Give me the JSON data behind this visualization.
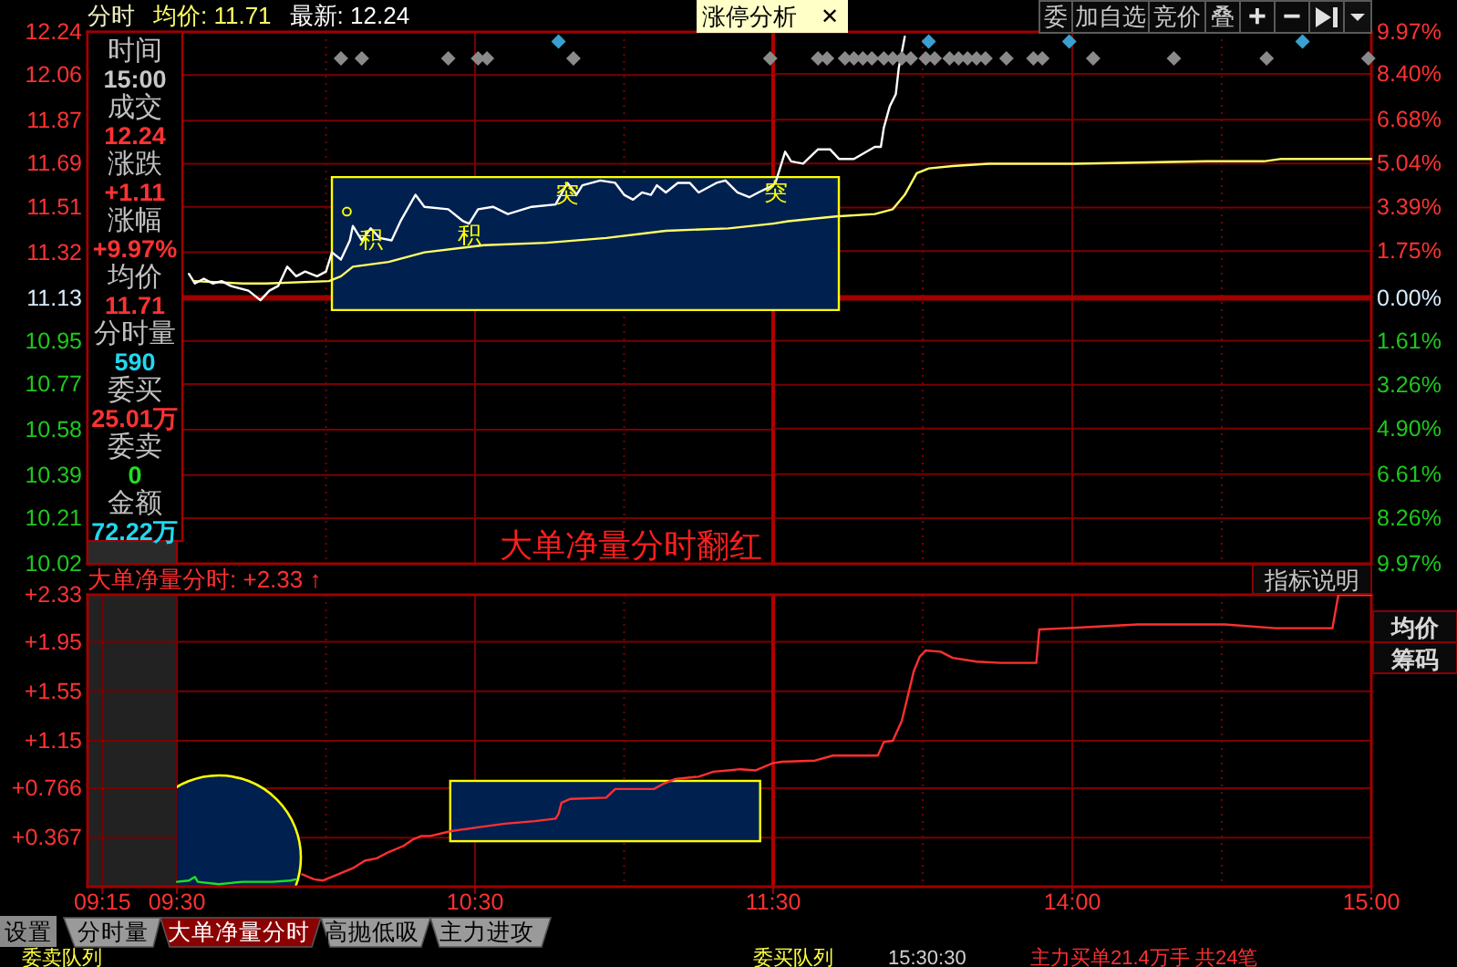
{
  "chart_data": [
    {
      "type": "line",
      "title": "分时",
      "legend": "top left",
      "grid": true,
      "tick_labels": "y",
      "series": [
        {
          "name": "均价: 11.71",
          "color": "#ffff66",
          "x": [
            9.56,
            9.72,
            9.8,
            10.01,
            10.05,
            10.09,
            10.21,
            10.33,
            10.53,
            10.74,
            10.94,
            11.14,
            11.35,
            11.5
          ],
          "values": [
            11.2,
            11.19,
            11.19,
            11.2,
            11.22,
            11.26,
            11.28,
            11.32,
            11.35,
            11.36,
            11.38,
            11.41,
            11.42,
            11.44
          ]
        },
        {
          "name": "最新: 12.24",
          "color": "#ffffff",
          "x": [
            9.54,
            9.56,
            9.59,
            9.62,
            9.65,
            9.68,
            9.74,
            9.78,
            9.81,
            9.84,
            9.87,
            9.9,
            9.93,
            9.97,
            10.0,
            10.02,
            10.05,
            10.08,
            10.09,
            10.12,
            10.15,
            10.18,
            10.22,
            10.25,
            10.3,
            10.33,
            10.41,
            10.46,
            10.48,
            10.51,
            10.56,
            10.61,
            10.69,
            10.77,
            10.81,
            10.84,
            10.86,
            10.92,
            10.97,
            11.0,
            11.03,
            11.06,
            11.09,
            11.11,
            11.14,
            11.18,
            11.22,
            11.25,
            11.31,
            11.34,
            11.38,
            11.42,
            11.45,
            11.5
          ],
          "values": [
            11.23,
            11.19,
            11.21,
            11.19,
            11.2,
            11.18,
            11.16,
            11.12,
            11.16,
            11.18,
            11.26,
            11.22,
            11.24,
            11.22,
            11.24,
            11.32,
            11.29,
            11.37,
            11.43,
            11.37,
            11.42,
            11.38,
            11.37,
            11.45,
            11.56,
            11.51,
            11.5,
            11.45,
            11.44,
            11.5,
            11.51,
            11.48,
            11.51,
            11.52,
            11.61,
            11.56,
            11.6,
            11.62,
            11.61,
            11.56,
            11.54,
            11.57,
            11.56,
            11.6,
            11.57,
            11.61,
            11.61,
            11.57,
            11.61,
            11.62,
            11.57,
            11.55,
            11.57,
            11.6
          ]
        },
        {
          "type": "scatter",
          "marker": "diamond",
          "color": "#8a8a8a",
          "x": [
            10.05,
            10.12,
            10.41,
            10.51,
            10.54,
            10.83,
            11.49
          ],
          "values": [
            12.13,
            12.13,
            12.13,
            12.13,
            12.13,
            12.13,
            12.13
          ]
        },
        {
          "type": "scatter",
          "marker": "diamond",
          "color": "#3aa0d0",
          "x": [
            10.78
          ],
          "values": [
            12.2
          ]
        },
        {
          "type": "scatter",
          "marker": "circle",
          "color": "#ffff00",
          "x": [
            10.07
          ],
          "values": [
            11.49
          ]
        }
      ],
      "xlim": [
        9.2,
        11.5
      ],
      "xticks": [
        9.25,
        9.5,
        {
          "value": 10,
          "label": null
        },
        10.5,
        {
          "value": 11,
          "label": null
        },
        11.5
      ],
      "ylim": [
        10.02,
        12.24
      ],
      "yticks": [
        10.02,
        10.21,
        10.39,
        10.58,
        10.77,
        10.95,
        11.13,
        11.32,
        11.51,
        11.69,
        11.87,
        12.06,
        12.24
      ],
      "ref_lines": [
        {
          "axis": "y",
          "value": 11.13,
          "color": "#a00000"
        },
        {
          "axis": "x",
          "value": 11.5,
          "color": "#b00000"
        }
      ],
      "annotations": [
        {
          "text": "积",
          "x": 10.15,
          "y": 11.42
        },
        {
          "text": "积",
          "x": 10.48,
          "y": 11.44
        },
        {
          "text": "突",
          "x": 10.81,
          "y": 11.61
        },
        "大单净量分时翻红"
      ]
    },
    {
      "type": "line",
      "grid": true,
      "tick_labels": "y",
      "series": [
        {
          "color": "#ffff66",
          "x": [
            13.0,
            13.05,
            13.21,
            13.34,
            13.4,
            13.44,
            13.48,
            13.52,
            13.6,
            13.72,
            14.01,
            14.45,
            14.64,
            14.7,
            15.0
          ],
          "values": [
            11.44,
            11.45,
            11.47,
            11.48,
            11.5,
            11.56,
            11.65,
            11.67,
            11.68,
            11.69,
            11.69,
            11.7,
            11.7,
            11.71,
            11.71
          ]
        },
        {
          "color": "#ffffff",
          "x": [
            13.0,
            13.01,
            13.04,
            13.06,
            13.1,
            13.15,
            13.19,
            13.22,
            13.27,
            13.34,
            13.36,
            13.37,
            13.39,
            13.41,
            13.42,
            13.44
          ],
          "values": [
            11.6,
            11.62,
            11.74,
            11.7,
            11.69,
            11.75,
            11.75,
            11.71,
            11.71,
            11.76,
            11.76,
            11.84,
            11.93,
            11.98,
            12.09,
            12.22
          ]
        },
        {
          "type": "scatter",
          "marker": "diamond",
          "color": "#8a8a8a",
          "x": [
            13.15,
            13.18,
            13.24,
            13.27,
            13.3,
            13.33,
            13.37,
            13.4,
            13.43,
            13.46,
            13.51,
            13.54,
            13.59,
            13.62,
            13.65,
            13.68,
            13.71,
            13.78,
            13.87,
            13.9,
            14.07,
            14.34,
            14.65,
            14.99
          ],
          "values": [
            12.13,
            12.13,
            12.13,
            12.13,
            12.13,
            12.13,
            12.13,
            12.13,
            12.13,
            12.13,
            12.13,
            12.13,
            12.13,
            12.13,
            12.13,
            12.13,
            12.13,
            12.13,
            12.13,
            12.13,
            12.13,
            12.13,
            12.13,
            12.13
          ]
        },
        {
          "type": "scatter",
          "marker": "diamond",
          "color": "#3aa0d0",
          "x": [
            13.52,
            13.99,
            14.77
          ],
          "values": [
            12.2,
            12.2,
            12.2
          ]
        }
      ],
      "xlim": [
        13,
        15
      ],
      "xticks": [
        {
          "value": 13.5,
          "label": null
        },
        14,
        {
          "value": 14.5,
          "label": null
        },
        15
      ],
      "ylim": [
        10.02,
        12.24
      ],
      "y2lim": [
        -9.97,
        9.97
      ],
      "y2ticks": [
        {
          "value": -9.97,
          "label": "9.97%"
        },
        {
          "value": -8.26,
          "label": "8.26%"
        },
        {
          "value": -6.61,
          "label": "6.61%"
        },
        {
          "value": -4.9,
          "label": "4.90%"
        },
        {
          "value": -3.26,
          "label": "3.26%"
        },
        {
          "value": -1.61,
          "label": "1.61%"
        },
        {
          "value": 0,
          "label": "0.00%"
        },
        {
          "value": 1.75,
          "label": "1.75%"
        },
        {
          "value": 3.39,
          "label": "3.39%"
        },
        {
          "value": 5.04,
          "label": "5.04%"
        },
        {
          "value": 6.68,
          "label": "6.68%"
        },
        {
          "value": 8.4,
          "label": "8.40%"
        },
        {
          "value": 9.97,
          "label": "9.97%"
        }
      ],
      "ref_lines": [
        {
          "axis": "y",
          "value": 11.13,
          "color": "#a00000"
        }
      ],
      "annotations": [
        {
          "text": "突",
          "x": 13.01,
          "y": 11.62
        }
      ]
    },
    {
      "type": "other",
      "annotations": [
        "时间",
        "15:00",
        "成交",
        "12.24",
        "涨跌",
        "+1.11",
        "涨幅",
        "+9.97%",
        "均价",
        "11.71",
        "分时量",
        "590",
        "委买",
        "25.01万",
        "委卖",
        "0",
        "金额",
        "72.22万"
      ],
      "colors": [
        "#c0c0c0",
        "#c8c8c8",
        "#c0c0c0",
        "#ff3232",
        "#c0c0c0",
        "#ff3232",
        "#c0c0c0",
        "#ff3232",
        "#c0c0c0",
        "#ff3232",
        "#c0c0c0",
        "#20d8f0",
        "#c0c0c0",
        "#ff3232",
        "#c0c0c0",
        "#20e020",
        "#c0c0c0",
        "#20d8f0"
      ]
    },
    {
      "type": "line",
      "title": "大单净量分时: +2.33 ↑",
      "grid": true,
      "series": [
        {
          "color": "#20e020",
          "x": [
            9.5,
            9.54,
            9.56,
            9.57,
            9.64,
            9.72,
            9.82,
            9.88,
            9.9
          ],
          "values": [
            0.01,
            0.02,
            0.05,
            0.01,
            -0.01,
            0.01,
            0.01,
            0.02,
            0.03
          ]
        },
        {
          "color": "#ff3030",
          "x": [
            9.92,
            9.96,
            9.99,
            10.02,
            10.05,
            10.09,
            10.13,
            10.17,
            10.21,
            10.26,
            10.29,
            10.32,
            10.35,
            10.42,
            10.51,
            10.6,
            10.7,
            10.77,
            10.78,
            10.79,
            10.82,
            10.94,
            10.97,
            11.1,
            11.13,
            11.17,
            11.25,
            11.3,
            11.35,
            11.39,
            11.44,
            11.5
          ],
          "values": [
            0.07,
            0.03,
            0.02,
            0.05,
            0.08,
            0.12,
            0.18,
            0.2,
            0.25,
            0.3,
            0.35,
            0.38,
            0.38,
            0.42,
            0.45,
            0.48,
            0.5,
            0.52,
            0.56,
            0.65,
            0.68,
            0.69,
            0.76,
            0.76,
            0.8,
            0.84,
            0.86,
            0.9,
            0.91,
            0.92,
            0.91,
            0.97
          ]
        }
      ],
      "xlim": [
        9.2,
        11.5
      ],
      "xticks": [
        {
          "value": 9.25,
          "label": "09:15"
        },
        {
          "value": 9.5,
          "label": "09:30"
        },
        {
          "value": 10,
          "label": null
        },
        {
          "value": 10.5,
          "label": "10:30"
        },
        {
          "value": 11,
          "label": null
        },
        {
          "value": 11.5,
          "label": "11:30"
        }
      ],
      "ylim": [
        -0.03,
        2.33
      ],
      "yticks": [
        {
          "value": 0.367,
          "label": "+0.367"
        },
        {
          "value": 0.766,
          "label": "+0.766"
        },
        {
          "value": 1.15,
          "label": "+1.15"
        },
        {
          "value": 1.55,
          "label": "+1.55"
        },
        {
          "value": 1.95,
          "label": "+1.95"
        },
        {
          "value": 2.33,
          "label": "+2.33"
        }
      ],
      "bands": [
        {
          "axis": "x",
          "from": 9.2,
          "to": 9.5,
          "color": "#222222"
        }
      ],
      "ref_lines": [
        {
          "axis": "x",
          "value": 11.5,
          "color": "#b00000"
        }
      ]
    },
    {
      "type": "line",
      "grid": true,
      "tick_labels": "x",
      "series": [
        {
          "color": "#ff3030",
          "x": [
            13.0,
            13.03,
            13.14,
            13.2,
            13.35,
            13.37,
            13.4,
            13.43,
            13.45,
            13.47,
            13.49,
            13.51,
            13.56,
            13.6,
            13.68,
            13.76,
            13.88,
            13.89,
            13.98,
            14.06,
            14.22,
            14.51,
            14.68,
            14.87,
            14.89,
            15.0
          ],
          "values": [
            0.97,
            0.98,
            0.99,
            1.03,
            1.03,
            1.14,
            1.15,
            1.31,
            1.51,
            1.71,
            1.83,
            1.88,
            1.87,
            1.82,
            1.79,
            1.78,
            1.78,
            2.05,
            2.06,
            2.07,
            2.09,
            2.09,
            2.06,
            2.06,
            2.33,
            2.33
          ]
        }
      ],
      "xlim": [
        13,
        15
      ],
      "xticks": [
        {
          "value": 13.5,
          "label": null
        },
        {
          "value": 14,
          "label": "14:00"
        },
        {
          "value": 14.5,
          "label": null
        },
        {
          "value": 15,
          "label": "15:00"
        }
      ],
      "ylim": [
        -0.03,
        2.33
      ],
      "yticks": [
        0.367,
        0.766,
        1.15,
        1.55,
        1.95,
        2.33
      ]
    },
    {
      "type": "other",
      "annotations": [
        "涨停分析",
        "✕",
        "委",
        "加自选",
        "竞价",
        "叠",
        "+",
        "−",
        "指标说明",
        "均价",
        "筹码",
        "设置",
        "分时量",
        "大单净量分时",
        "高抛低吸",
        "主力进攻",
        "委卖队列",
        "委买队列",
        "15:30:30",
        "主力买单21.4万手 共24笔"
      ],
      "colors": [
        "#000000",
        "#000000",
        "#c8c8c8",
        "#c8c8c8",
        "#c8c8c8",
        "#c8c8c8",
        "#e0e0e0",
        "#e0e0e0",
        "#c8c8c8",
        "#d8d8d8",
        "#d8d8d8",
        "#000000",
        "#000000",
        "#ffffff",
        "#000000",
        "#000000",
        "#ffff40",
        "#ffff40",
        "#d0d0d0",
        "#ff3030"
      ]
    }
  ]
}
